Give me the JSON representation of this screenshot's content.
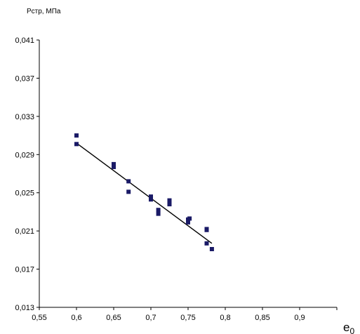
{
  "chart_data": {
    "type": "scatter",
    "ylabel": "Рстр, МПа",
    "xlabel": "e",
    "xlabel_subscript": "0",
    "xlim": [
      0.55,
      0.95
    ],
    "ylim": [
      0.013,
      0.041
    ],
    "x_ticks": [
      "0,55",
      "0,6",
      "0,65",
      "0,7",
      "0,75",
      "0,8",
      "0,85",
      "0,9"
    ],
    "x_tick_values": [
      0.55,
      0.6,
      0.65,
      0.7,
      0.75,
      0.8,
      0.85,
      0.9
    ],
    "y_ticks": [
      "0,013",
      "0,017",
      "0,021",
      "0,025",
      "0,029",
      "0,033",
      "0,037",
      "0,041"
    ],
    "y_tick_values": [
      0.013,
      0.017,
      0.021,
      0.025,
      0.029,
      0.033,
      0.037,
      0.041
    ],
    "grid": false,
    "legend": false,
    "marker_color": "#1a1a66",
    "line_color": "#000000",
    "series": [
      {
        "points": [
          [
            0.6,
            0.031
          ],
          [
            0.6,
            0.0301
          ],
          [
            0.65,
            0.028
          ],
          [
            0.65,
            0.0277
          ],
          [
            0.67,
            0.0262
          ],
          [
            0.67,
            0.0251
          ],
          [
            0.7,
            0.0246
          ],
          [
            0.7,
            0.0243
          ],
          [
            0.71,
            0.0232
          ],
          [
            0.71,
            0.0228
          ],
          [
            0.725,
            0.0242
          ],
          [
            0.725,
            0.0238
          ],
          [
            0.75,
            0.0222
          ],
          [
            0.75,
            0.0219
          ],
          [
            0.752,
            0.0223
          ],
          [
            0.775,
            0.0212
          ],
          [
            0.775,
            0.0211
          ],
          [
            0.775,
            0.0197
          ],
          [
            0.782,
            0.0191
          ]
        ]
      }
    ],
    "trendline": {
      "x": [
        0.6,
        0.782
      ],
      "y": [
        0.0302,
        0.0197
      ]
    }
  }
}
